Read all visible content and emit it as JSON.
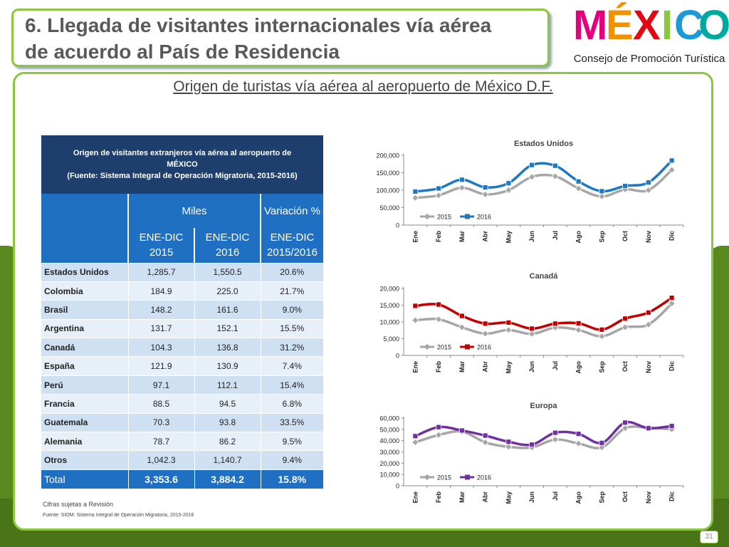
{
  "slide": {
    "title": "6. Llegada de visitantes internacionales vía aérea\nde acuerdo al País de Residencia",
    "subtitle": "Origen de turistas vía aérea al aeropuerto de México D.F.",
    "page_number": "31"
  },
  "logo": {
    "word": "MÉXICO",
    "letters": [
      {
        "char": "M",
        "color": "#e4007c"
      },
      {
        "char": "É",
        "color": "#f39200"
      },
      {
        "char": "X",
        "color": "#e30613"
      },
      {
        "char": "I",
        "color": "#8cc63f"
      },
      {
        "char": "C",
        "color": "#1d9ad6"
      },
      {
        "char": "O",
        "color": "#00a99d"
      }
    ],
    "subtitle": "Consejo de Promoción Turística"
  },
  "table": {
    "caption": "Origen de visitantes extranjeros vía aérea al aeropuerto de\nMÉXICO\n(Fuente: Sistema Integral de Operación Migratoria, 2015-2016)",
    "group_headers": [
      "Miles",
      "Variación %"
    ],
    "col_headers": [
      "ENE-DIC\n2015",
      "ENE-DIC\n2016",
      "ENE-DIC\n2015/2016"
    ],
    "rows": [
      {
        "country": "Estados Unidos",
        "y2015": "1,285.7",
        "y2016": "1,550.5",
        "var": "20.6%"
      },
      {
        "country": "Colombia",
        "y2015": "184.9",
        "y2016": "225.0",
        "var": "21.7%"
      },
      {
        "country": "Brasil",
        "y2015": "148.2",
        "y2016": "161.6",
        "var": "9.0%"
      },
      {
        "country": "Argentina",
        "y2015": "131.7",
        "y2016": "152.1",
        "var": "15.5%"
      },
      {
        "country": "Canadá",
        "y2015": "104.3",
        "y2016": "136.8",
        "var": "31.2%"
      },
      {
        "country": "España",
        "y2015": "121.9",
        "y2016": "130.9",
        "var": "7.4%"
      },
      {
        "country": "Perú",
        "y2015": "97.1",
        "y2016": "112.1",
        "var": "15.4%"
      },
      {
        "country": "Francia",
        "y2015": "88.5",
        "y2016": "94.5",
        "var": "6.8%"
      },
      {
        "country": "Guatemala",
        "y2015": "70.3",
        "y2016": "93.8",
        "var": "33.5%"
      },
      {
        "country": "Alemania",
        "y2015": "78.7",
        "y2016": "86.2",
        "var": "9.5%"
      },
      {
        "country": "Otros",
        "y2015": "1,042.3",
        "y2016": "1,140.7",
        "var": "9.4%"
      }
    ],
    "total": {
      "label": "Total",
      "y2015": "3,353.6",
      "y2016": "3,884.2",
      "var": "15.8%"
    }
  },
  "notes": {
    "line1": "Cifras sujetas a Revisión",
    "line2": "Fuente: SIOM: Sistema Integral de Operación Migratoria, 2015-2016"
  },
  "chart_data": [
    {
      "type": "line",
      "title": "Estados Unidos",
      "categories": [
        "Ene",
        "Feb",
        "Mar",
        "Abr",
        "May",
        "Jun",
        "Jul",
        "Ago",
        "Sep",
        "Oct",
        "Nov",
        "Dic"
      ],
      "ylim": [
        0,
        200000
      ],
      "yticks": [
        0,
        50000,
        100000,
        150000,
        200000
      ],
      "ytick_labels": [
        "0",
        "50,000",
        "100,000",
        "150,000",
        "200,000"
      ],
      "legend_position": "bottom-left",
      "series": [
        {
          "name": "2015",
          "color": "#a6a6a6",
          "marker": "diamond",
          "values": [
            78000,
            85000,
            107000,
            88000,
            100000,
            138000,
            140000,
            105000,
            82000,
            102000,
            100000,
            158000
          ]
        },
        {
          "name": "2016",
          "color": "#1f78c4",
          "marker": "square",
          "values": [
            96000,
            105000,
            130000,
            108000,
            120000,
            172000,
            170000,
            125000,
            97000,
            112000,
            122000,
            185000
          ]
        }
      ]
    },
    {
      "type": "line",
      "title": "Canadá",
      "categories": [
        "Ene",
        "Feb",
        "Mar",
        "Abr",
        "May",
        "Jun",
        "Jul",
        "Ago",
        "Sep",
        "Oct",
        "Nov",
        "Dic"
      ],
      "ylim": [
        0,
        20000
      ],
      "yticks": [
        0,
        5000,
        10000,
        15000,
        20000
      ],
      "ytick_labels": [
        "0",
        "5,000",
        "10,000",
        "15,000",
        "20,000"
      ],
      "legend_position": "bottom-left",
      "series": [
        {
          "name": "2015",
          "color": "#a6a6a6",
          "marker": "diamond",
          "values": [
            10500,
            10800,
            8400,
            6500,
            7600,
            6400,
            8300,
            7600,
            5700,
            8400,
            9200,
            15500
          ]
        },
        {
          "name": "2016",
          "color": "#c00000",
          "marker": "square",
          "values": [
            14800,
            15200,
            11800,
            9500,
            9800,
            8000,
            9500,
            9600,
            7700,
            11000,
            12800,
            17200
          ]
        }
      ]
    },
    {
      "type": "line",
      "title": "Europa",
      "categories": [
        "Ene",
        "Feb",
        "Mar",
        "Abr",
        "May",
        "Jun",
        "Jul",
        "Ago",
        "Sep",
        "Oct",
        "Nov",
        "Dic"
      ],
      "ylim": [
        0,
        60000
      ],
      "yticks": [
        0,
        10000,
        20000,
        30000,
        40000,
        50000,
        60000
      ],
      "ytick_labels": [
        "0",
        "10,000",
        "20,000",
        "30,000",
        "40,000",
        "50,000",
        "60,000"
      ],
      "legend_position": "bottom-left",
      "series": [
        {
          "name": "2015",
          "color": "#a6a6a6",
          "marker": "diamond",
          "values": [
            38500,
            45000,
            48000,
            38500,
            34500,
            34000,
            41000,
            37500,
            34000,
            51000,
            51500,
            50000
          ]
        },
        {
          "name": "2016",
          "color": "#7030a0",
          "marker": "square",
          "values": [
            44000,
            52000,
            49000,
            44500,
            39000,
            36500,
            47000,
            46000,
            38000,
            56000,
            51000,
            53000
          ]
        }
      ]
    }
  ]
}
